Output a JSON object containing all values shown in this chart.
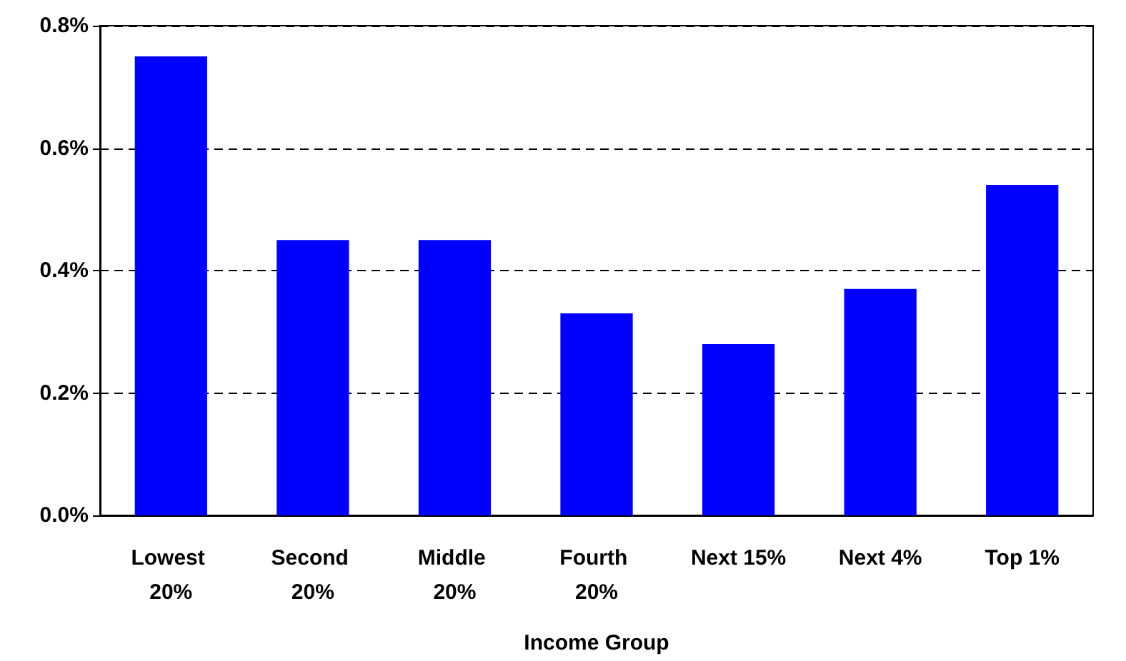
{
  "chart_data": {
    "type": "bar",
    "xlabel": "Income Group",
    "categories": [
      "Lowest 20%",
      "Second 20%",
      "Middle 20%",
      "Fourth 20%",
      "Next 15%",
      "Next 4%",
      "Top 1%"
    ],
    "values": [
      0.75,
      0.45,
      0.45,
      0.33,
      0.28,
      0.37,
      0.54
    ],
    "color": "#0000ff",
    "ylim": [
      0,
      0.8
    ],
    "yticks": [
      {
        "value": 0,
        "label": "0.0%"
      },
      {
        "value": 0.2,
        "label": "0.2%"
      },
      {
        "value": 0.4,
        "label": "0.4%"
      },
      {
        "value": 0.6,
        "label": "0.6%"
      },
      {
        "value": 0.8,
        "label": "0.8%"
      }
    ],
    "grid": "y"
  }
}
